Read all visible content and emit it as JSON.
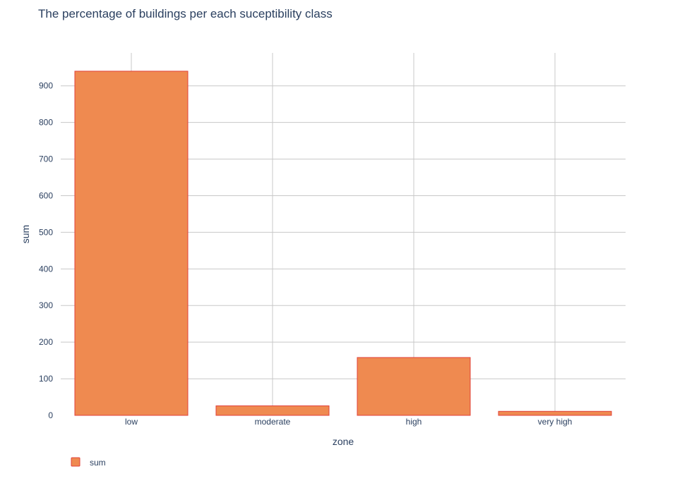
{
  "chart_data": {
    "type": "bar",
    "title": "The percentage of buildings per each suceptibility class",
    "xlabel": "zone",
    "ylabel": "sum",
    "categories": [
      "low",
      "moderate",
      "high",
      "very high"
    ],
    "series": [
      {
        "name": "sum",
        "values": [
          940,
          26,
          158,
          11
        ]
      }
    ],
    "ylim": [
      0,
      990
    ],
    "yticks": [
      0,
      100,
      200,
      300,
      400,
      500,
      600,
      700,
      800,
      900
    ],
    "grid": true,
    "legend_position": "bottom-left",
    "colors": {
      "bar_fill": "#ef8a50",
      "bar_stroke": "#e0403a",
      "text": "#2a3f5f",
      "grid": "#c8c8c8"
    }
  }
}
